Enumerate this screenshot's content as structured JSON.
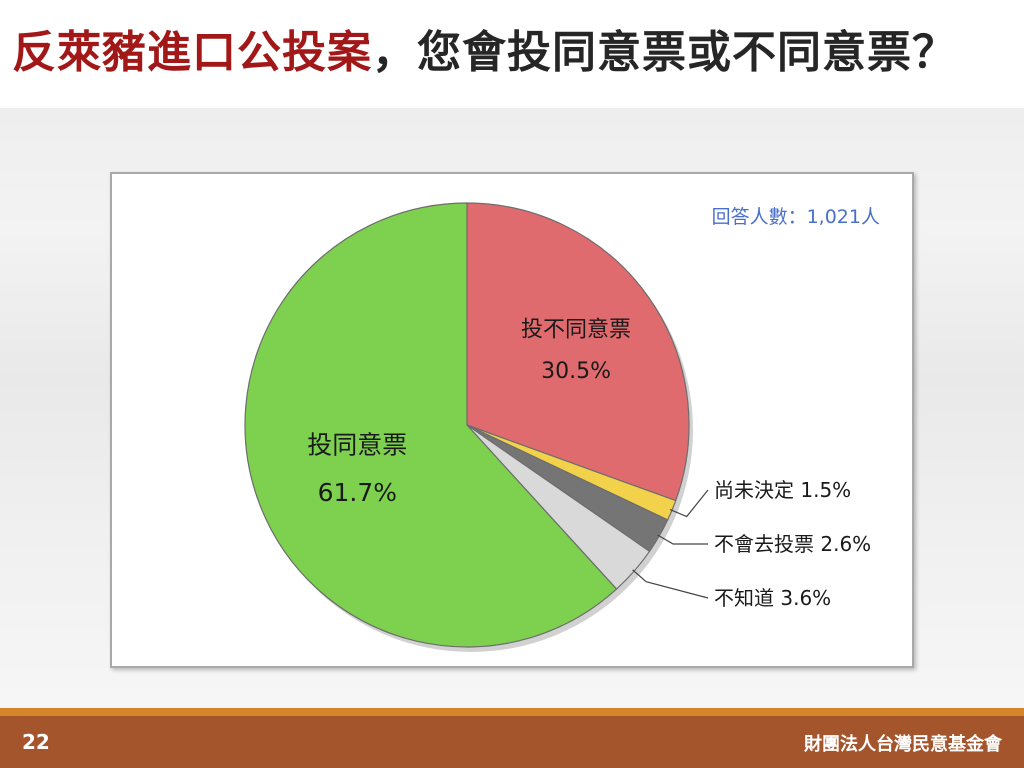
{
  "title": {
    "highlight": "反萊豬進口公投案",
    "rest": "，您會投同意票或不同意票？"
  },
  "respondents": "回答人數：1,021人",
  "footer": {
    "page_number": "22",
    "organization": "財團法人台灣民意基金會"
  },
  "chart_data": {
    "type": "pie",
    "slices": [
      {
        "label": "投不同意票",
        "value": 30.5,
        "value_text": "30.5%",
        "color": "#e06b6f"
      },
      {
        "label": "尚未決定",
        "value": 1.5,
        "value_text": "1.5%",
        "color": "#f2d24a"
      },
      {
        "label": "不會去投票",
        "value": 2.6,
        "value_text": "2.6%",
        "color": "#757575"
      },
      {
        "label": "不知道",
        "value": 3.6,
        "value_text": "3.6%",
        "color": "#d9d9d9"
      },
      {
        "label": "投同意票",
        "value": 61.7,
        "value_text": "61.7%",
        "color": "#7ed04f"
      }
    ],
    "start_angle": "12 o'clock, clockwise",
    "label_placement": {
      "投不同意票": "inside",
      "尚未決定": "outside",
      "不會去投票": "outside",
      "不知道": "outside",
      "投同意票": "inside"
    }
  }
}
